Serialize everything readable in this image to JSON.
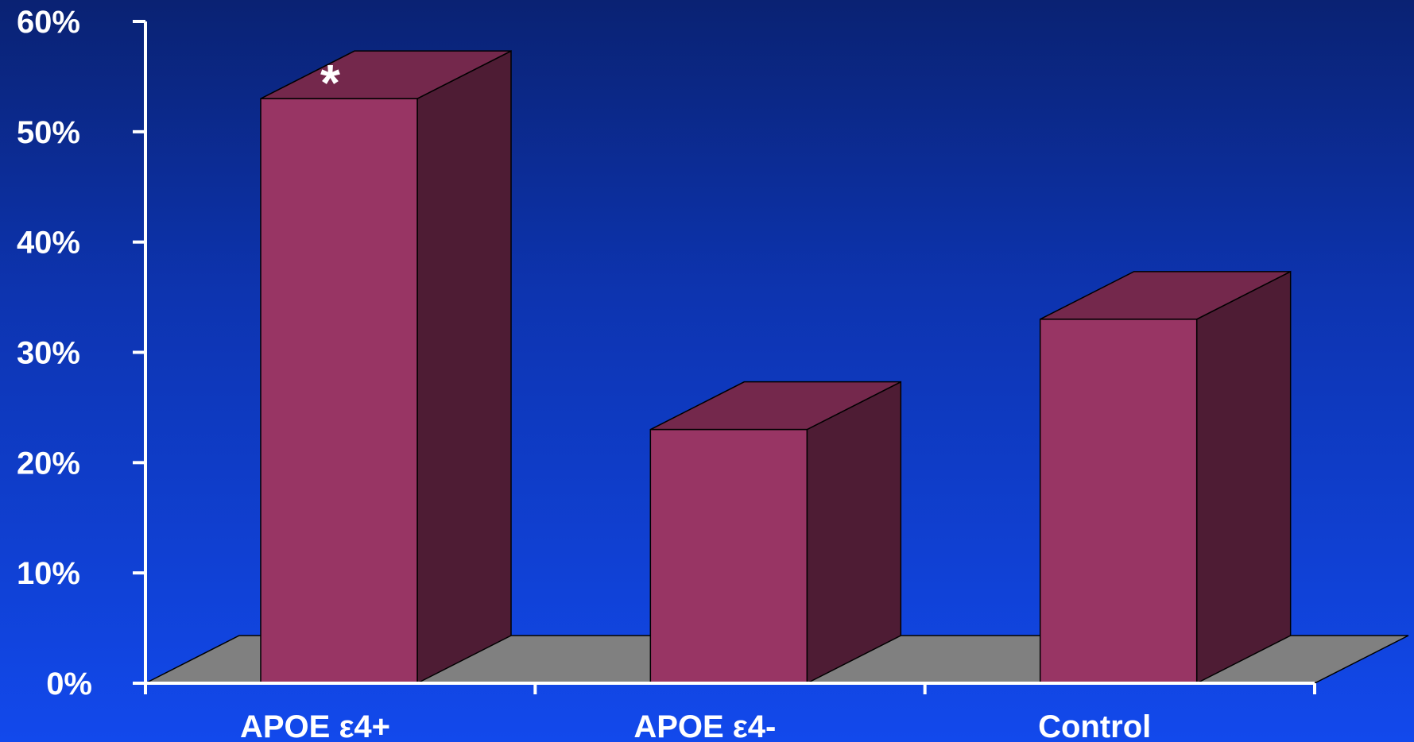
{
  "chart_data": {
    "type": "bar",
    "categories": [
      "APOE ε4+",
      "APOE ε4-",
      "Control"
    ],
    "values": [
      53,
      23,
      33
    ],
    "ylim": [
      0,
      60
    ],
    "yticks": [
      "0%",
      "10%",
      "20%",
      "30%",
      "40%",
      "50%",
      "60%"
    ],
    "ytick_values": [
      0,
      10,
      20,
      30,
      40,
      50,
      60
    ],
    "annotations": [
      {
        "category": "APOE ε4+",
        "text": "*"
      }
    ],
    "grid": false,
    "legend": "none",
    "colors": {
      "bar_front": "#983564",
      "bar_side": "#4e1c34",
      "bar_top": "#74284c",
      "floor": "#808080",
      "axis": "#ffffff",
      "text": "#ffffff"
    }
  }
}
